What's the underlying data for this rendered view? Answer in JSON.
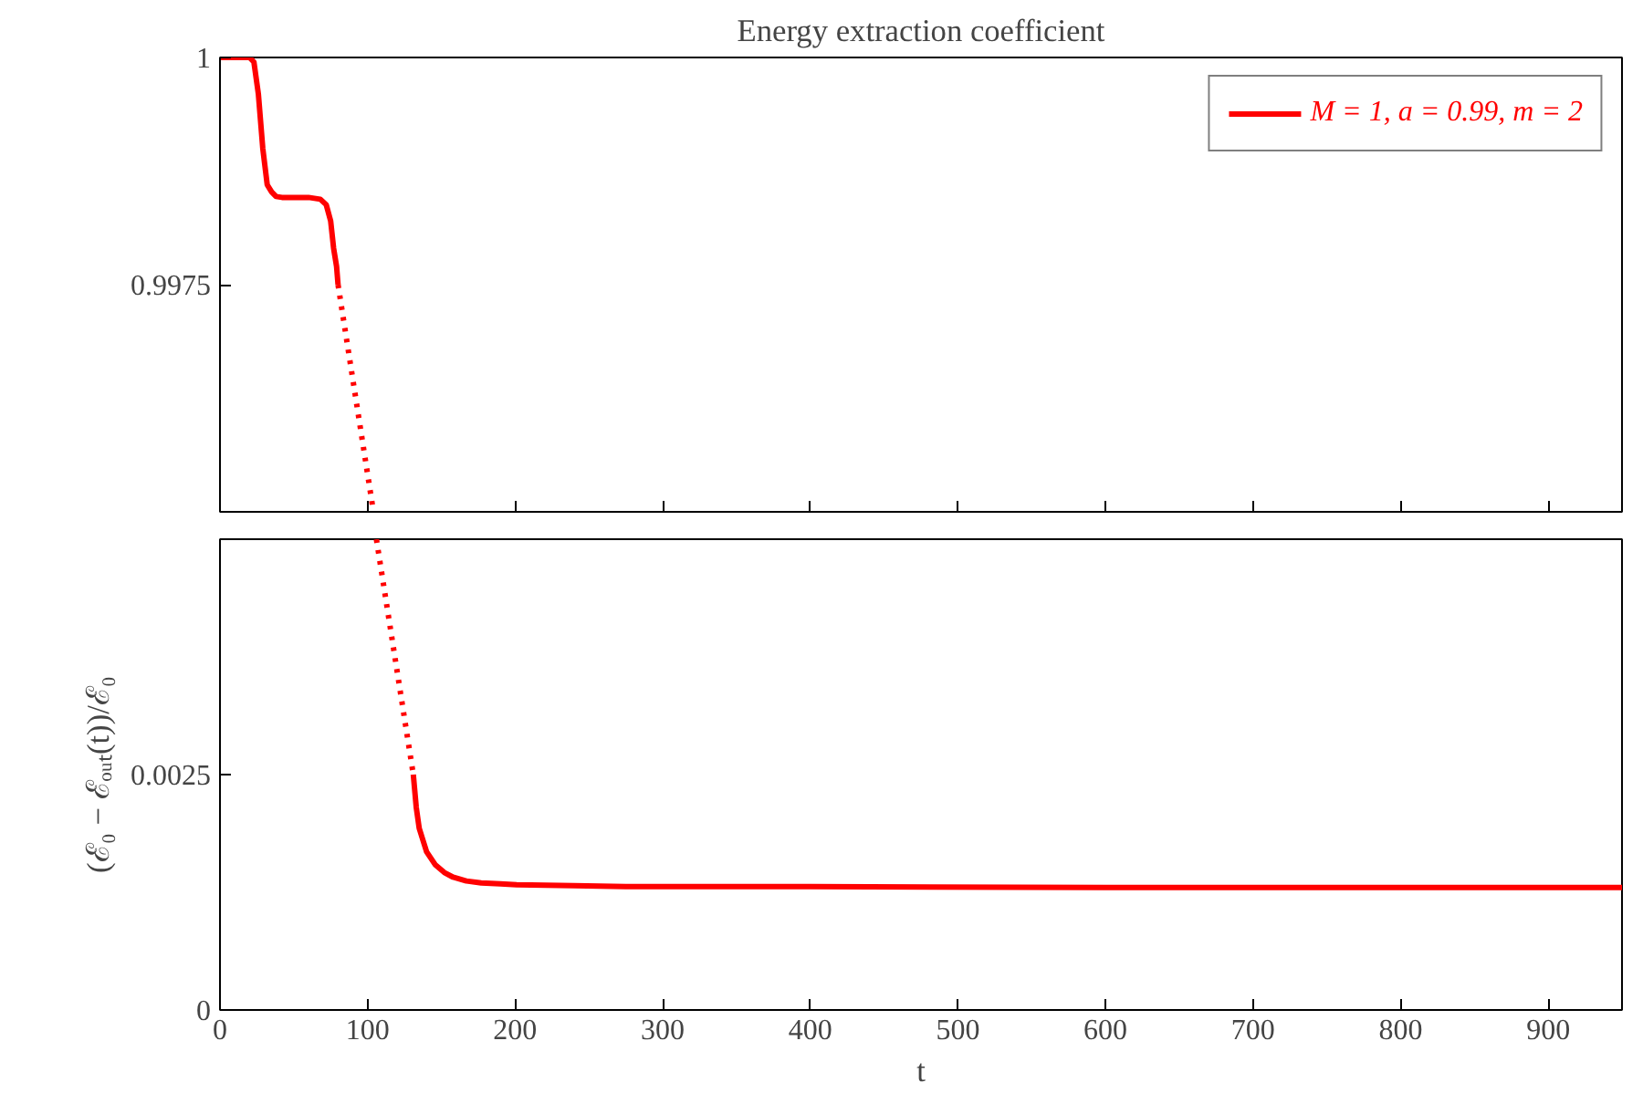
{
  "chart_data": [
    {
      "type": "line",
      "title": "Energy extraction coefficient",
      "xlim": [
        0,
        950
      ],
      "xticks": [
        0,
        100,
        200,
        300,
        400,
        500,
        600,
        700,
        800,
        900
      ],
      "ylim": [
        0.995,
        1
      ],
      "yticks": [
        0.9975,
        1
      ],
      "tick_labels": "y",
      "grid": false,
      "legend": "top right",
      "marker": "none",
      "series": [
        {
          "name": "M = 1, a = 0.99, m = 2",
          "color": "#ff0000",
          "line_style": "solid",
          "x": [
            0,
            20,
            23,
            26,
            29,
            32,
            35,
            38,
            42,
            50,
            60,
            68,
            72,
            75,
            77,
            79,
            80
          ],
          "values": [
            1,
            1,
            0.99995,
            0.9996,
            0.999,
            0.9986,
            0.99852,
            0.99847,
            0.99846,
            0.99846,
            0.99846,
            0.99844,
            0.99838,
            0.9982,
            0.9979,
            0.9977,
            0.9975
          ]
        },
        {
          "color": "#ff0000",
          "line_style": "dotted",
          "x": [
            80,
            104
          ],
          "values": [
            0.9975,
            0.995
          ]
        }
      ]
    },
    {
      "type": "line",
      "xlabel": "t",
      "ylabel": "(ℰ₀ − ℰₒᵤₜ(t))/ℰ₀",
      "xlim": [
        0,
        950
      ],
      "xticks": [
        0,
        100,
        200,
        300,
        400,
        500,
        600,
        700,
        800,
        900
      ],
      "ylim": [
        0,
        0.005
      ],
      "yticks": [
        0,
        0.0025
      ],
      "grid": false,
      "marker": "none",
      "series": [
        {
          "color": "#ff0000",
          "line_style": "dotted",
          "x": [
            106,
            131
          ],
          "values": [
            0.005,
            0.0025
          ]
        },
        {
          "color": "#ff0000",
          "line_style": "solid",
          "x": [
            131,
            133,
            135,
            140,
            146,
            152,
            158,
            167,
            177,
            190,
            201,
            240,
            275,
            400,
            600,
            800,
            950
          ],
          "values": [
            0.0025,
            0.00215,
            0.00193,
            0.00168,
            0.00154,
            0.00146,
            0.00141,
            0.00137,
            0.00135,
            0.00134,
            0.00133,
            0.00132,
            0.00131,
            0.00131,
            0.0013,
            0.0013,
            0.0013
          ]
        }
      ]
    }
  ]
}
